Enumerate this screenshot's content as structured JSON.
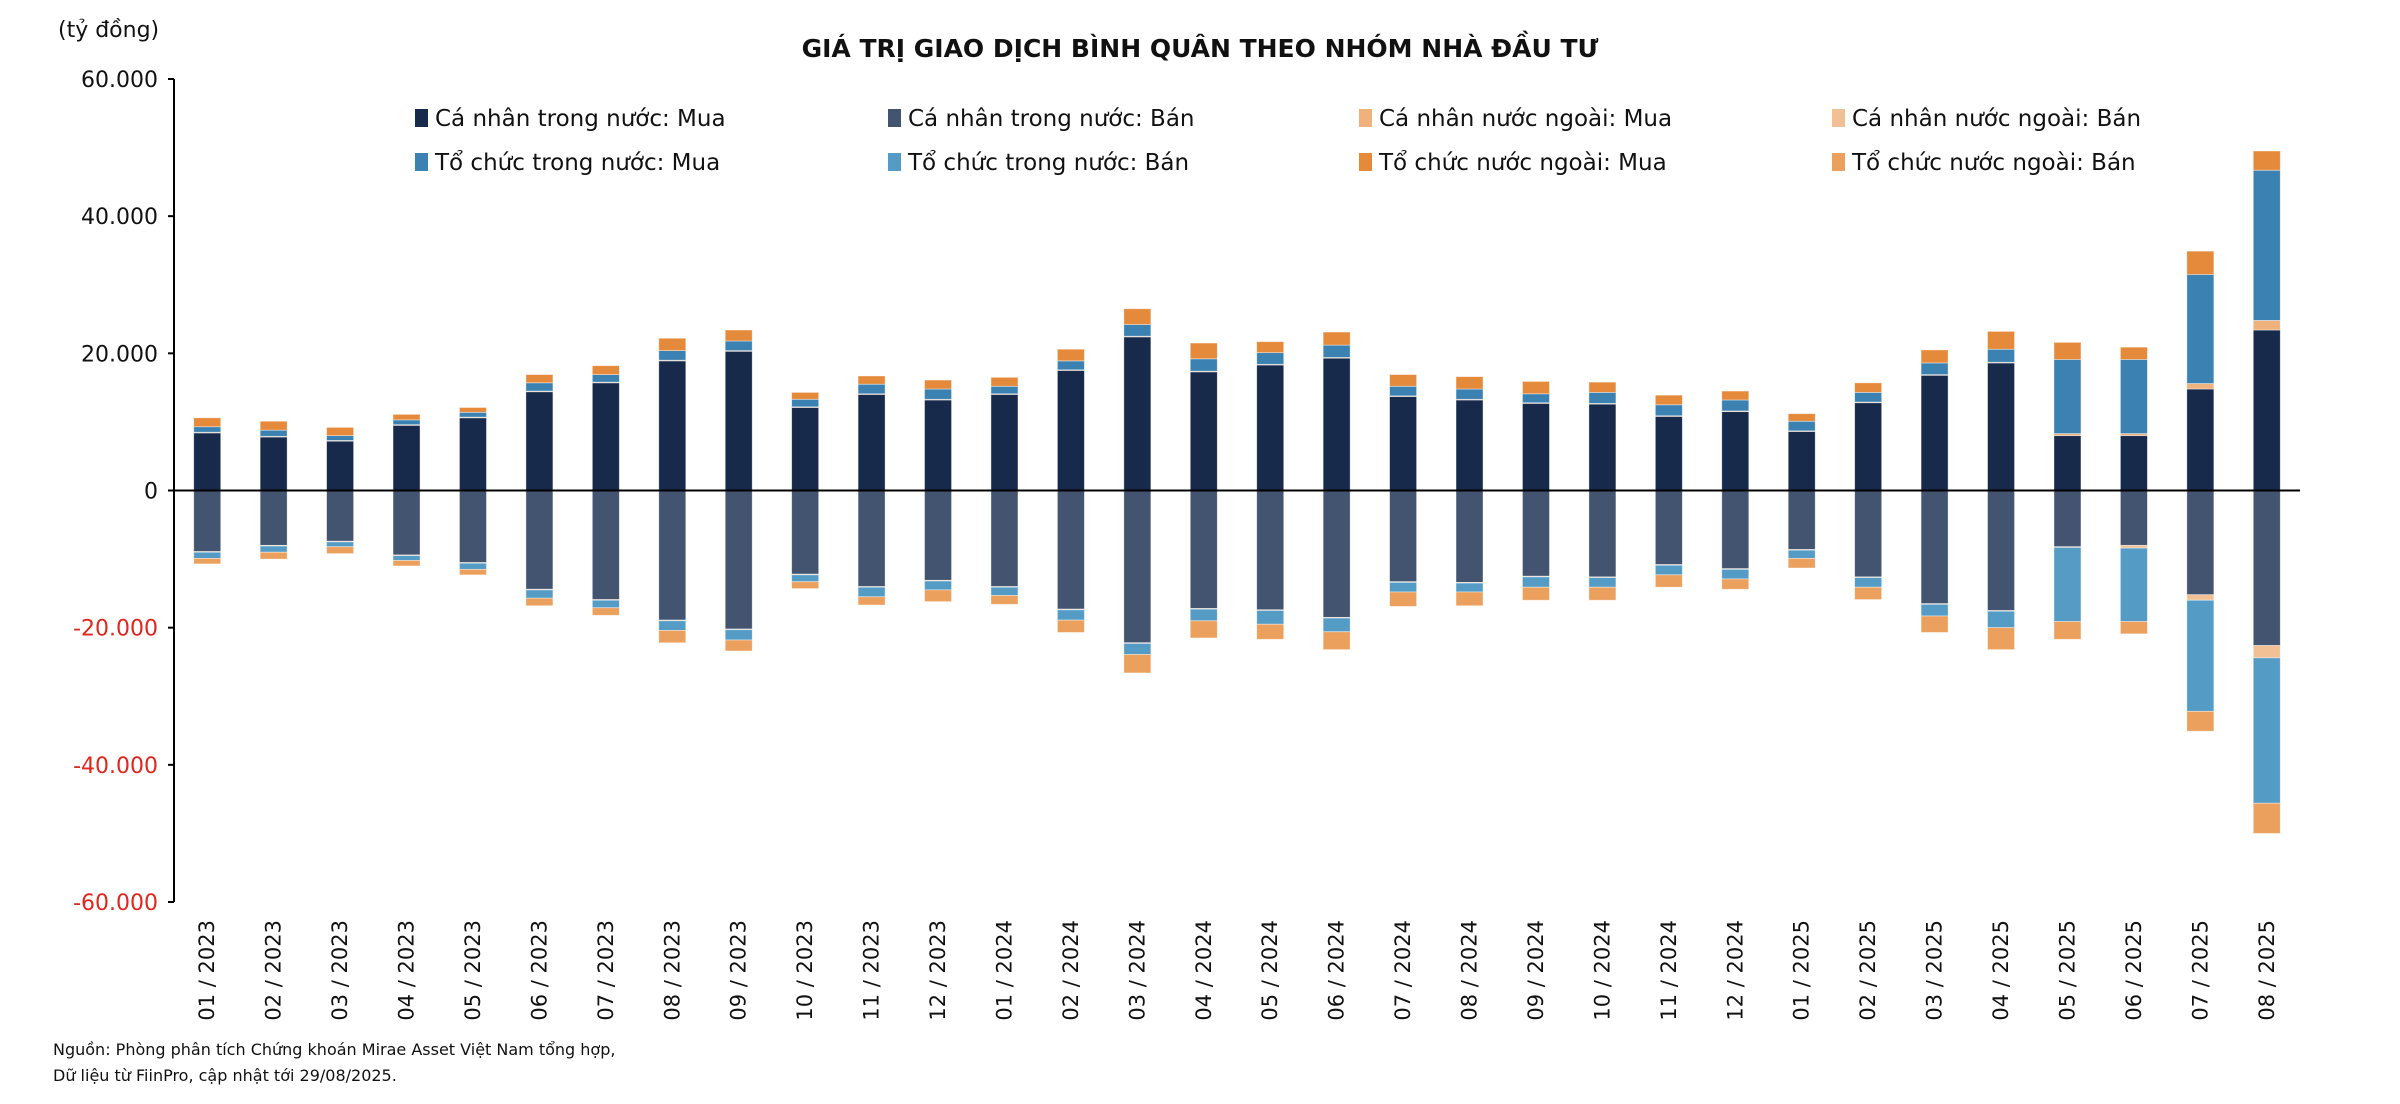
{
  "chart_data": {
    "type": "bar",
    "stacked": true,
    "title": "GIÁ TRỊ GIAO DỊCH BÌNH QUÂN THEO NHÓM NHÀ ĐẦU TƯ",
    "ylabel": "(tỷ đồng)",
    "ylim": [
      -60000,
      60000
    ],
    "yticks": [
      60000,
      40000,
      20000,
      0,
      -20000,
      -40000,
      -60000
    ],
    "ytick_labels": [
      "60.000",
      "40.000",
      "20.000",
      "0",
      "-20.000",
      "-40.000",
      "-60.000"
    ],
    "legend_placement": "top",
    "categories": [
      "01 / 2023",
      "02 / 2023",
      "03 / 2023",
      "04 / 2023",
      "05 / 2023",
      "06 / 2023",
      "07 / 2023",
      "08 / 2023",
      "09 / 2023",
      "10 / 2023",
      "11 / 2023",
      "12 / 2023",
      "01 / 2024",
      "02 / 2024",
      "03 / 2024",
      "04 / 2024",
      "05 / 2024",
      "06 / 2024",
      "07 / 2024",
      "08 / 2024",
      "09 / 2024",
      "10 / 2024",
      "11 / 2024",
      "12 / 2024",
      "01 / 2025",
      "02 / 2025",
      "03 / 2025",
      "04 / 2025",
      "05 / 2025",
      "06 / 2025",
      "07 / 2025",
      "08 / 2025"
    ],
    "series": [
      {
        "name": "Cá nhân trong nước: Mua",
        "color": "#172a4b",
        "side": "positive",
        "values": [
          8400,
          7800,
          7200,
          9500,
          10600,
          14400,
          15700,
          18900,
          20300,
          12100,
          14000,
          13200,
          14000,
          17500,
          22400,
          17300,
          18300,
          19300,
          13700,
          13200,
          12700,
          12600,
          10800,
          11500,
          8600,
          12800,
          16800,
          18600,
          8000,
          8000,
          14800,
          23400
        ]
      },
      {
        "name": "Cá nhân trong nước: Bán",
        "color": "#42546f",
        "side": "negative",
        "values": [
          -8900,
          -8000,
          -7400,
          -9400,
          -10500,
          -14400,
          -15900,
          -18900,
          -20200,
          -12200,
          -14000,
          -13100,
          -14000,
          -17300,
          -22200,
          -17200,
          -17400,
          -18500,
          -13300,
          -13400,
          -12500,
          -12600,
          -10800,
          -11400,
          -8600,
          -12600,
          -16500,
          -17500,
          -8200,
          -8000,
          -15200,
          -22600
        ]
      },
      {
        "name": "Cá nhân nước ngoài: Mua",
        "color": "#efb27c",
        "side": "positive",
        "values": [
          100,
          100,
          100,
          100,
          100,
          100,
          100,
          100,
          100,
          100,
          100,
          100,
          100,
          100,
          100,
          100,
          100,
          100,
          100,
          100,
          100,
          100,
          100,
          100,
          100,
          100,
          100,
          100,
          300,
          300,
          800,
          1400
        ]
      },
      {
        "name": "Cá nhân nước ngoài: Bán",
        "color": "#f1c095",
        "side": "negative",
        "values": [
          -100,
          -100,
          -100,
          -100,
          -100,
          -100,
          -100,
          -100,
          -100,
          -100,
          -100,
          -100,
          -100,
          -100,
          -100,
          -100,
          -100,
          -100,
          -100,
          -100,
          -100,
          -100,
          -100,
          -100,
          -100,
          -100,
          -100,
          -100,
          -100,
          -400,
          -800,
          -1800
        ]
      },
      {
        "name": "Tổ chức trong nước: Mua",
        "color": "#3b82b3",
        "side": "positive",
        "values": [
          800,
          900,
          700,
          700,
          700,
          1200,
          1100,
          1400,
          1400,
          1100,
          1400,
          1500,
          1100,
          1300,
          1700,
          1800,
          1700,
          1800,
          1400,
          1500,
          1300,
          1600,
          1600,
          1600,
          1400,
          1400,
          1700,
          1900,
          10800,
          10800,
          15900,
          21900
        ]
      },
      {
        "name": "Tổ chức trong nước: Bán",
        "color": "#549cc6",
        "side": "negative",
        "values": [
          -900,
          -900,
          -700,
          -700,
          -900,
          -1200,
          -1100,
          -1400,
          -1500,
          -1000,
          -1400,
          -1300,
          -1200,
          -1500,
          -1600,
          -1700,
          -2000,
          -2000,
          -1400,
          -1300,
          -1500,
          -1400,
          -1400,
          -1400,
          -1200,
          -1400,
          -1700,
          -2400,
          -10800,
          -10700,
          -16200,
          -21200
        ]
      },
      {
        "name": "Tổ chức nước ngoài: Mua",
        "color": "#e5893b",
        "side": "positive",
        "values": [
          1300,
          1300,
          1200,
          800,
          700,
          1200,
          1300,
          1800,
          1600,
          1000,
          1200,
          1300,
          1300,
          1700,
          2300,
          2300,
          1600,
          1900,
          1700,
          1800,
          1800,
          1500,
          1400,
          1300,
          1100,
          1400,
          1900,
          2600,
          2500,
          1800,
          3400,
          2800
        ]
      },
      {
        "name": "Tổ chức nước ngoài: Bán",
        "color": "#eba05d",
        "side": "negative",
        "values": [
          -800,
          -1000,
          -1000,
          -800,
          -800,
          -1100,
          -1100,
          -1800,
          -1600,
          -1000,
          -1200,
          -1700,
          -1300,
          -1800,
          -2700,
          -2500,
          -2200,
          -2600,
          -2100,
          -2000,
          -1900,
          -1900,
          -1800,
          -1500,
          -1400,
          -1800,
          -2400,
          -3200,
          -2600,
          -1800,
          -2900,
          -4400
        ]
      }
    ],
    "stack_order_positive": [
      0,
      2,
      4,
      6
    ],
    "stack_order_negative": [
      1,
      3,
      5,
      7
    ],
    "negative_tick_color": "#e0261d"
  },
  "footer": {
    "source_line1": "Nguồn: Phòng phân tích Chứng khoán Mirae Asset Việt Nam tổng hợp,",
    "source_line2": "Dữ liệu từ FiinPro, cập nhật tới 29/08/2025."
  }
}
